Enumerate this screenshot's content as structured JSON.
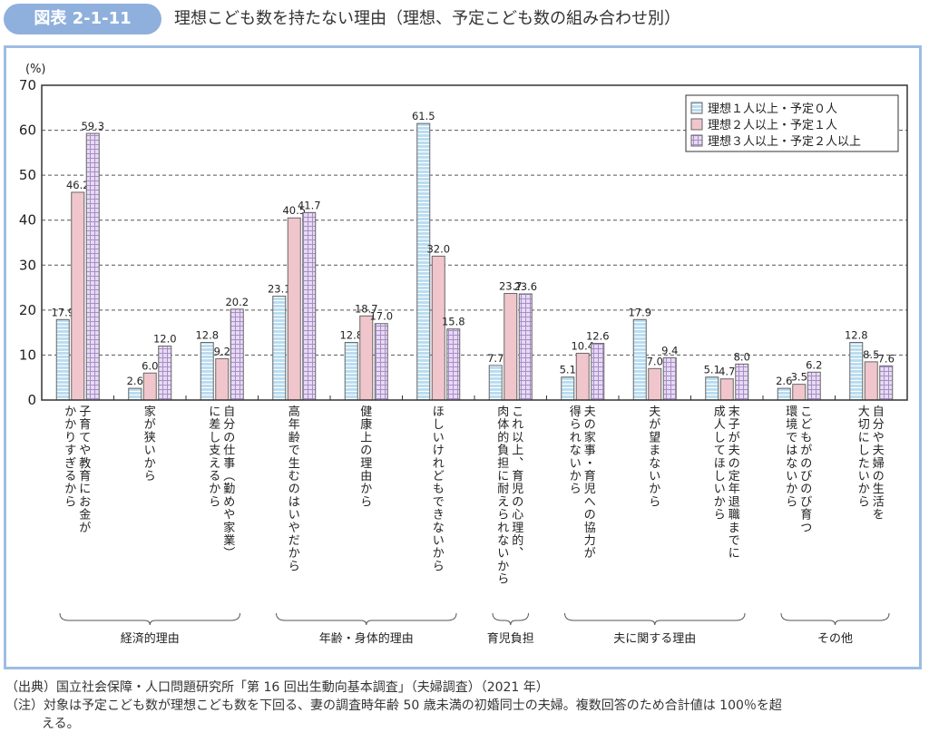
{
  "figure": {
    "badge": "図表 2-1-11",
    "title": "理想こども数を持たない理由（理想、予定こども数の組み合わせ別）"
  },
  "notes": {
    "source": "（出典）国立社会保障・人口問題研究所「第 16 回出生動向基本調査」（夫婦調査）（2021 年）",
    "note_line1": "（注）対象は予定こども数が理想こども数を下回る、妻の調査時年齢 50 歳未満の初婚同士の夫婦。複数回答のため合計値は 100％を超",
    "note_line2": "える。"
  },
  "chart_data": {
    "type": "bar",
    "title": "理想こども数を持たない理由（理想、予定こども数の組み合わせ別）",
    "ylabel": "(%)",
    "xlabel": "",
    "ylim": [
      0,
      70
    ],
    "yticks": [
      0,
      10,
      20,
      30,
      40,
      50,
      60,
      70
    ],
    "grid": true,
    "legend_position": "top-right",
    "categories": [
      [
        "子育てや教育にお金が",
        "かかりすぎるから"
      ],
      [
        "家が狭いから"
      ],
      [
        "自分の仕事（勤めや家業）",
        "に差し支えるから"
      ],
      [
        "高年齢で生むのはいやだから"
      ],
      [
        "健康上の理由から"
      ],
      [
        "ほしいけれどもできないから"
      ],
      [
        "これ以上、育児の心理的、",
        "肉体的負担に耐えられないから"
      ],
      [
        "夫の家事・育児への協力が",
        "得られないから"
      ],
      [
        "夫が望まないから"
      ],
      [
        "末子が夫の定年退職までに",
        "成人してほしいから"
      ],
      [
        "こどもがのびのび育つ",
        "環境ではないから"
      ],
      [
        "自分や夫婦の生活を",
        "大切にしたいから"
      ]
    ],
    "series": [
      {
        "name": "理想１人以上・予定０人",
        "color": "#b9dcf0",
        "pattern": "horizontal-stripes",
        "values": [
          17.9,
          2.6,
          12.8,
          23.1,
          12.8,
          61.5,
          7.7,
          5.1,
          17.9,
          5.1,
          2.6,
          12.8
        ]
      },
      {
        "name": "理想２人以上・予定１人",
        "color": "#f0c6cc",
        "pattern": "solid",
        "values": [
          46.2,
          6.0,
          9.2,
          40.5,
          18.7,
          32.0,
          23.7,
          10.4,
          7.0,
          4.7,
          3.5,
          8.5
        ]
      },
      {
        "name": "理想３人以上・予定２人以上",
        "color": "#d9c9ea",
        "pattern": "grid",
        "values": [
          59.3,
          12.0,
          20.2,
          41.7,
          17.0,
          15.8,
          23.6,
          12.6,
          9.4,
          8.0,
          6.2,
          7.6
        ]
      }
    ],
    "value_labels": [
      [
        "17.9",
        "2.6",
        "12.8",
        "23.1",
        "12.8",
        "61.5",
        "7.7",
        "5.1",
        "17.9",
        "5.1",
        "2.6",
        "12.8"
      ],
      [
        "46.2",
        "6.0",
        "9.2",
        "40.5",
        "18.7",
        "32.0",
        "23.7",
        "10.4",
        "7.0",
        "4.7",
        "3.5",
        "8.5"
      ],
      [
        "59.3",
        "12.0",
        "20.2",
        "41.7",
        "17.0",
        "15.8",
        "23.6",
        "12.6",
        "9.4",
        "8.0",
        "6.2",
        "7.6"
      ]
    ],
    "groups": [
      {
        "label": "経済的理由",
        "from": 0,
        "to": 2
      },
      {
        "label": "年齢・身体的理由",
        "from": 3,
        "to": 5
      },
      {
        "label": "育児負担",
        "from": 6,
        "to": 6
      },
      {
        "label": "夫に関する理由",
        "from": 7,
        "to": 9
      },
      {
        "label": "その他",
        "from": 10,
        "to": 11
      }
    ]
  }
}
